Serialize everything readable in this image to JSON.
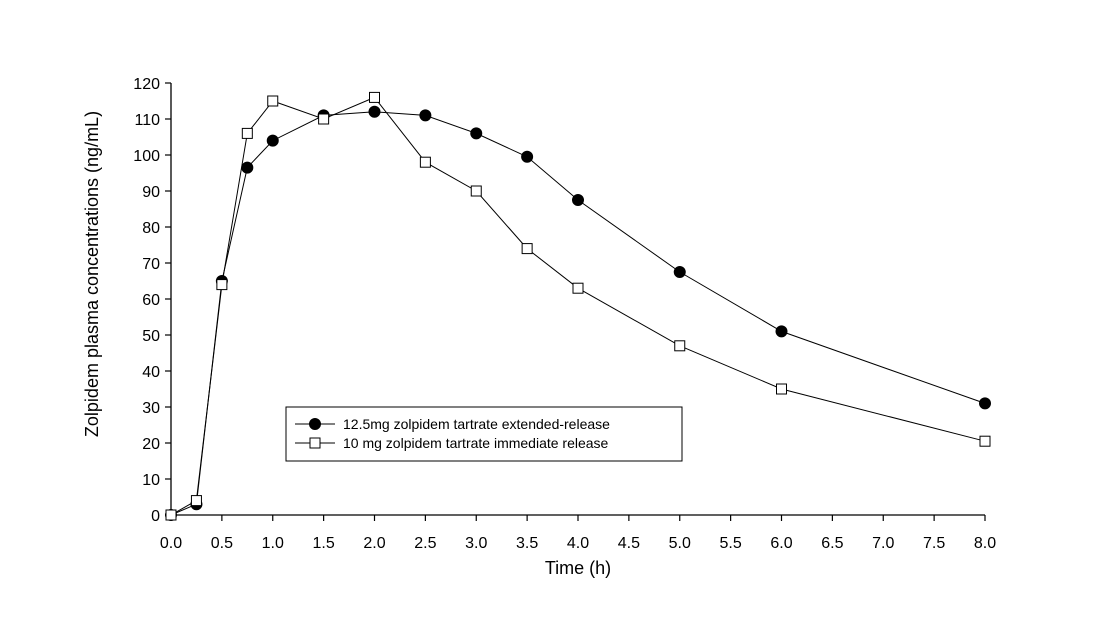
{
  "chart_data": {
    "type": "line",
    "title": "",
    "xlabel": "Time (h)",
    "ylabel": "Zolpidem plasma concentrations (ng/mL)",
    "xlim": [
      0,
      8
    ],
    "ylim": [
      0,
      120
    ],
    "x_ticks": [
      "0.0",
      "0.5",
      "1.0",
      "1.5",
      "2.0",
      "2.5",
      "3.0",
      "3.5",
      "4.0",
      "4.5",
      "5.0",
      "5.5",
      "6.0",
      "6.5",
      "7.0",
      "7.5",
      "8.0"
    ],
    "y_ticks": [
      "0",
      "10",
      "20",
      "30",
      "40",
      "50",
      "60",
      "70",
      "80",
      "90",
      "100",
      "110",
      "120"
    ],
    "grid": false,
    "legend_position": "bottom-center",
    "series": [
      {
        "name": "12.5mg zolpidem tartrate extended-release",
        "marker": "filled-circle",
        "color": "#000000",
        "x": [
          0,
          0.25,
          0.5,
          0.75,
          1.0,
          1.5,
          2.0,
          2.5,
          3.0,
          3.5,
          4.0,
          5.0,
          6.0,
          8.0
        ],
        "values": [
          0,
          3,
          65,
          96.5,
          104,
          111,
          112,
          111,
          106,
          99.5,
          87.5,
          67.5,
          51,
          31
        ]
      },
      {
        "name": "10 mg zolpidem tartrate immediate release",
        "marker": "open-square",
        "color": "#000000",
        "x": [
          0,
          0.25,
          0.5,
          0.75,
          1.0,
          1.5,
          2.0,
          2.5,
          3.0,
          3.5,
          4.0,
          5.0,
          6.0,
          8.0
        ],
        "values": [
          0,
          4,
          64,
          106,
          115,
          110,
          116,
          98,
          90,
          74,
          63,
          47,
          35,
          20.5
        ]
      }
    ]
  }
}
